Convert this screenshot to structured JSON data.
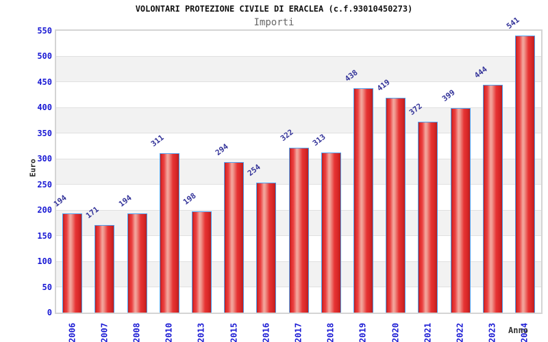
{
  "header": {
    "title": "VOLONTARI PROTEZIONE CIVILE DI ERACLEA (c.f.93010450273)",
    "subtitle": "Importi"
  },
  "chart_data": {
    "type": "bar",
    "title": "VOLONTARI PROTEZIONE CIVILE DI ERACLEA (c.f.93010450273)",
    "subtitle": "Importi",
    "xlabel": "Anno",
    "ylabel": "Euro",
    "categories": [
      "2006",
      "2007",
      "2008",
      "2010",
      "2013",
      "2015",
      "2016",
      "2017",
      "2018",
      "2019",
      "2020",
      "2021",
      "2022",
      "2023",
      "2024"
    ],
    "values": [
      194,
      171,
      194,
      311,
      198,
      294,
      254,
      322,
      313,
      438,
      419,
      372,
      399,
      444,
      541
    ],
    "ylim": [
      0,
      550
    ],
    "ytick_step": 50,
    "legend": "none",
    "grid": "alternating horizontal gray bands every 50, thin gridlines at band edges",
    "bar_labels_rotated_deg": -38,
    "x_labels_rotated_deg": -90,
    "colors": {
      "bar_fill": "#e63434",
      "bar_highlight": "#f3a79e",
      "bar_border": "#4da0f0",
      "tick_label_blue": "#1a1ad4",
      "value_label_navy": "#333399",
      "axis_title": "#222222",
      "band_gray": "#f2f2f2",
      "gridline": "#e0e0e0",
      "plot_border": "#d4d4d4",
      "subtitle_gray": "#666666"
    }
  }
}
